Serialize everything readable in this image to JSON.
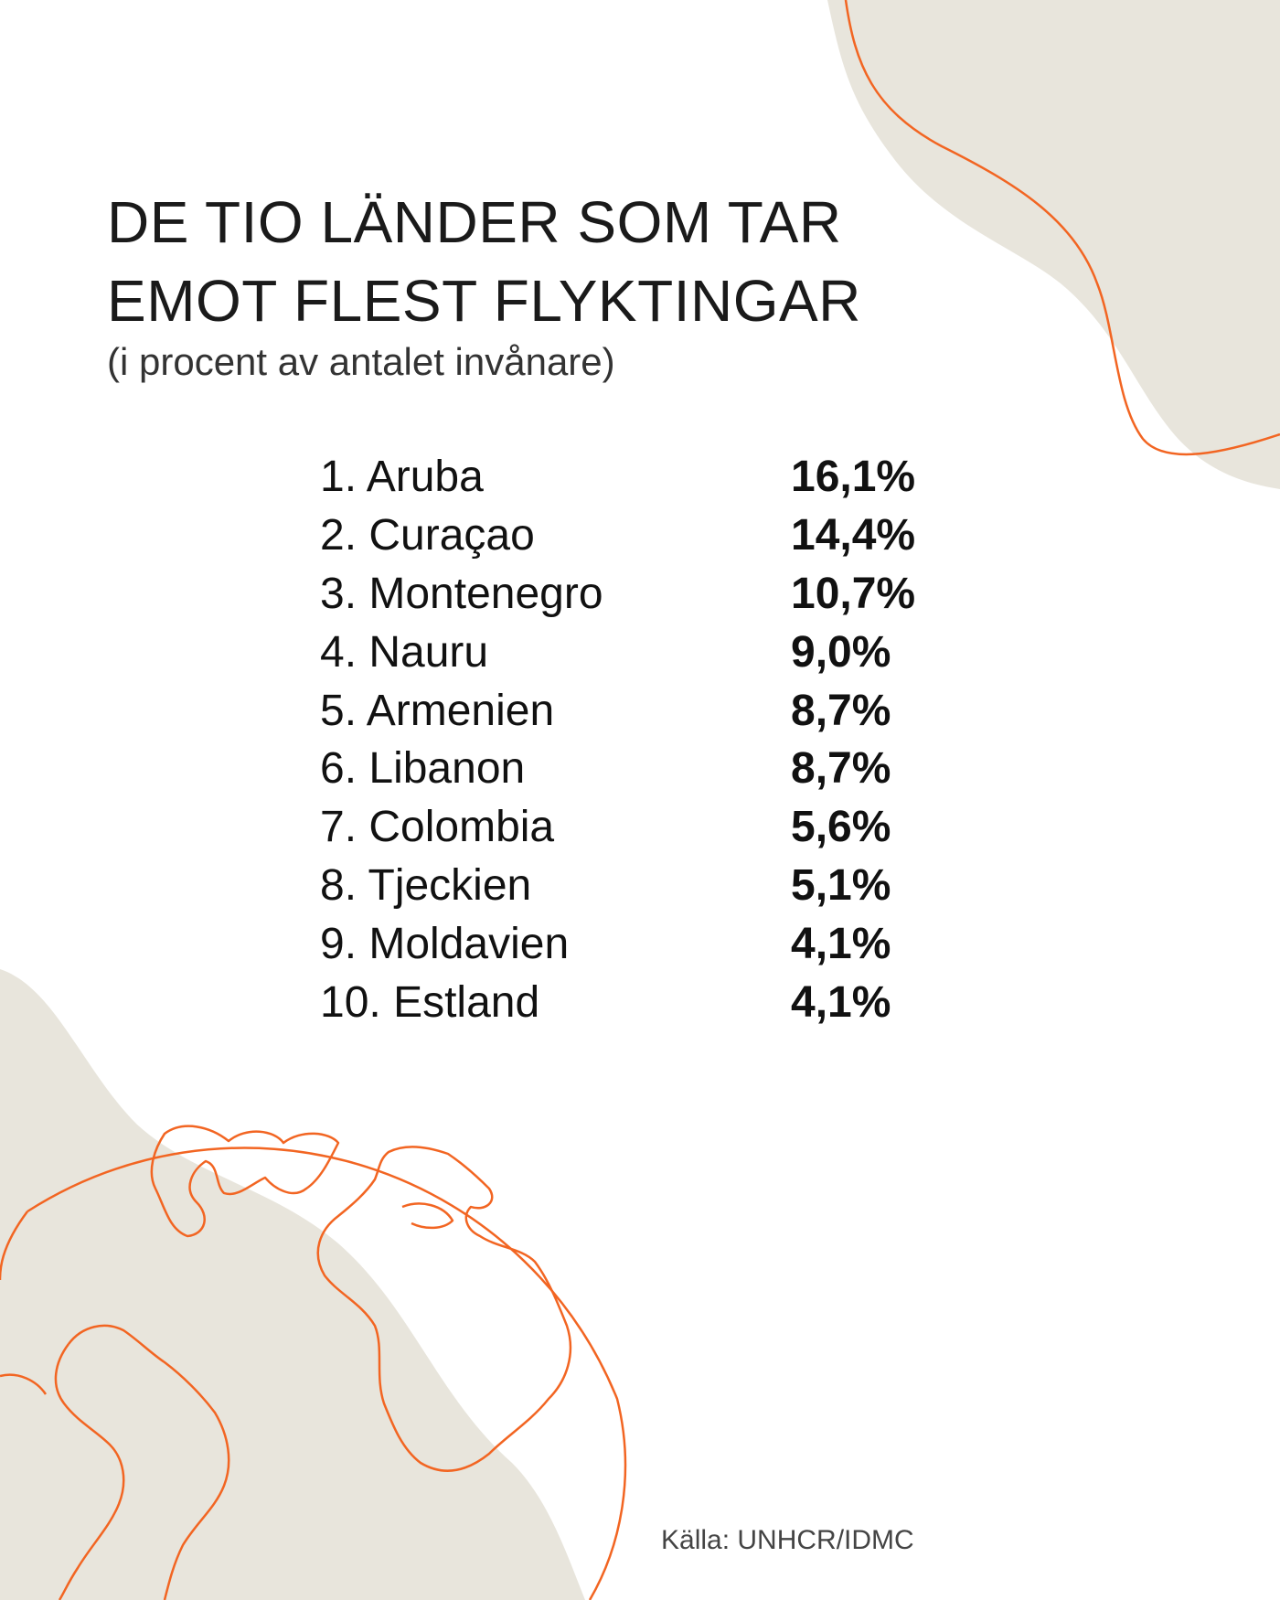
{
  "title_lines": [
    "DE TIO LÄNDER SOM TAR",
    "EMOT FLEST FLYKTINGAR"
  ],
  "subtitle": "(i procent av antalet invånare)",
  "ranking": [
    {
      "country": "1. Aruba",
      "value": "16,1%"
    },
    {
      "country": "2. Curaçao",
      "value": "14,4%"
    },
    {
      "country": "3. Montenegro",
      "value": "10,7%"
    },
    {
      "country": "4. Nauru",
      "value": "9,0%"
    },
    {
      "country": "5. Armenien",
      "value": "8,7%"
    },
    {
      "country": "6. Libanon",
      "value": "8,7%"
    },
    {
      "country": "7. Colombia",
      "value": "5,6%"
    },
    {
      "country": "8. Tjeckien",
      "value": "5,1%"
    },
    {
      "country": "9. Moldavien",
      "value": "4,1%"
    },
    {
      "country": "10. Estland",
      "value": "4,1%"
    }
  ],
  "source": "Källa: UNHCR/IDMC",
  "colors": {
    "beige_shape": "#e8e5dc",
    "orange_line": "#f26522",
    "text": "#1a1a1a"
  },
  "decorations": [
    "globe-illustration",
    "curved-line"
  ]
}
